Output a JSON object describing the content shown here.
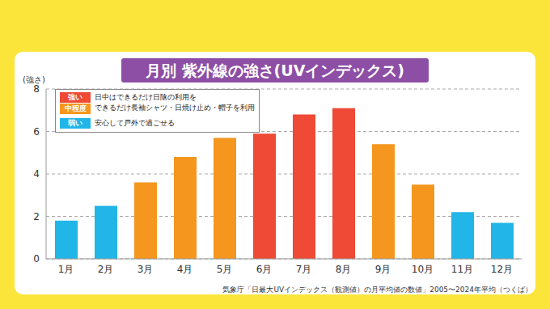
{
  "chart_data": {
    "type": "bar",
    "title": "月別 紫外線の強さ(UVインデックス)",
    "y_label": "(強さ)",
    "categories": [
      "1月",
      "2月",
      "3月",
      "4月",
      "5月",
      "6月",
      "7月",
      "8月",
      "9月",
      "10月",
      "11月",
      "12月"
    ],
    "values": [
      1.8,
      2.5,
      3.6,
      4.8,
      5.7,
      5.9,
      6.8,
      7.1,
      5.4,
      3.5,
      2.2,
      1.7
    ],
    "colors": [
      "#22b5e8",
      "#22b5e8",
      "#f5961e",
      "#f5961e",
      "#f5961e",
      "#ee4a35",
      "#ee4a35",
      "#ee4a35",
      "#f5961e",
      "#f5961e",
      "#22b5e8",
      "#22b5e8"
    ],
    "ylim": [
      0,
      8
    ],
    "yticks": [
      0,
      2,
      4,
      6,
      8
    ],
    "grid": true,
    "annotations": [
      {
        "labels": [
          "強い",
          "中程度"
        ],
        "colors": [
          "#ee4a35",
          "#f5961e"
        ],
        "text": "日中はできるだけ日陰の利用を\nできるだけ長袖シャツ・日焼け止め・帽子を利用"
      },
      {
        "labels": [
          "弱い"
        ],
        "colors": [
          "#22b5e8"
        ],
        "text": "安心して戸外で過ごせる"
      }
    ],
    "source": "気象庁「日最大UVインデックス（観測値）の月平均値の数値」2005〜2024年平均（つくば）"
  }
}
